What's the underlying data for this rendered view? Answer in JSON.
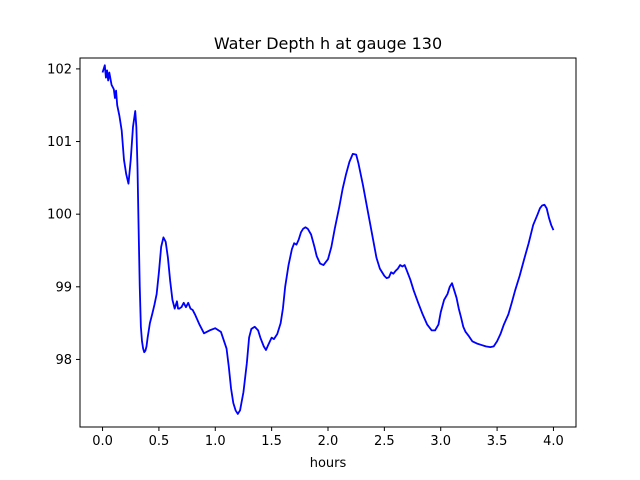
{
  "chart_data": {
    "type": "line",
    "title": "Water Depth h at gauge 130",
    "xlabel": "hours",
    "ylabel": "",
    "xlim": [
      -0.2,
      4.2
    ],
    "ylim": [
      97.07,
      102.15
    ],
    "xticks": [
      0.0,
      0.5,
      1.0,
      1.5,
      2.0,
      2.5,
      3.0,
      3.5,
      4.0
    ],
    "xtick_labels": [
      "0.0",
      "0.5",
      "1.0",
      "1.5",
      "2.0",
      "2.5",
      "3.0",
      "3.5",
      "4.0"
    ],
    "yticks": [
      98,
      99,
      100,
      101,
      102
    ],
    "ytick_labels": [
      "98",
      "99",
      "100",
      "101",
      "102"
    ],
    "grid": false,
    "legend": "none",
    "series": [
      {
        "color": "#0000ff",
        "x": [
          0.0,
          0.02,
          0.03,
          0.04,
          0.05,
          0.06,
          0.08,
          0.1,
          0.11,
          0.12,
          0.13,
          0.15,
          0.17,
          0.19,
          0.21,
          0.23,
          0.25,
          0.27,
          0.29,
          0.3,
          0.31,
          0.32,
          0.33,
          0.34,
          0.35,
          0.36,
          0.37,
          0.38,
          0.39,
          0.4,
          0.42,
          0.44,
          0.46,
          0.48,
          0.5,
          0.52,
          0.54,
          0.56,
          0.58,
          0.6,
          0.62,
          0.64,
          0.65,
          0.66,
          0.67,
          0.68,
          0.7,
          0.72,
          0.74,
          0.76,
          0.78,
          0.8,
          0.82,
          0.84,
          0.86,
          0.88,
          0.9,
          0.95,
          1.0,
          1.05,
          1.1,
          1.12,
          1.14,
          1.16,
          1.18,
          1.2,
          1.22,
          1.25,
          1.28,
          1.3,
          1.32,
          1.35,
          1.38,
          1.4,
          1.43,
          1.45,
          1.47,
          1.5,
          1.52,
          1.55,
          1.58,
          1.6,
          1.62,
          1.65,
          1.68,
          1.7,
          1.72,
          1.74,
          1.76,
          1.78,
          1.8,
          1.82,
          1.85,
          1.88,
          1.9,
          1.93,
          1.96,
          2.0,
          2.03,
          2.06,
          2.1,
          2.13,
          2.16,
          2.19,
          2.22,
          2.25,
          2.27,
          2.29,
          2.31,
          2.34,
          2.37,
          2.4,
          2.43,
          2.46,
          2.5,
          2.52,
          2.54,
          2.56,
          2.58,
          2.6,
          2.62,
          2.64,
          2.66,
          2.68,
          2.7,
          2.73,
          2.76,
          2.8,
          2.84,
          2.88,
          2.92,
          2.95,
          2.98,
          3.0,
          3.03,
          3.06,
          3.08,
          3.1,
          3.12,
          3.14,
          3.16,
          3.18,
          3.2,
          3.22,
          3.25,
          3.28,
          3.32,
          3.36,
          3.4,
          3.44,
          3.47,
          3.5,
          3.53,
          3.56,
          3.6,
          3.63,
          3.66,
          3.7,
          3.74,
          3.78,
          3.82,
          3.86,
          3.88,
          3.9,
          3.92,
          3.94,
          3.96,
          3.98,
          4.0
        ],
        "y": [
          101.95,
          102.05,
          101.88,
          101.98,
          101.84,
          101.95,
          101.78,
          101.72,
          101.6,
          101.7,
          101.5,
          101.35,
          101.15,
          100.75,
          100.55,
          100.42,
          100.75,
          101.2,
          101.42,
          101.2,
          100.65,
          99.8,
          99.0,
          98.45,
          98.25,
          98.15,
          98.1,
          98.12,
          98.18,
          98.3,
          98.5,
          98.62,
          98.75,
          98.9,
          99.2,
          99.55,
          99.68,
          99.62,
          99.4,
          99.08,
          98.82,
          98.7,
          98.75,
          98.8,
          98.7,
          98.7,
          98.72,
          98.78,
          98.72,
          98.78,
          98.7,
          98.68,
          98.62,
          98.55,
          98.48,
          98.42,
          98.36,
          98.4,
          98.43,
          98.38,
          98.15,
          97.9,
          97.6,
          97.4,
          97.3,
          97.25,
          97.3,
          97.55,
          97.95,
          98.3,
          98.42,
          98.45,
          98.4,
          98.3,
          98.18,
          98.13,
          98.2,
          98.3,
          98.28,
          98.35,
          98.5,
          98.7,
          99.0,
          99.3,
          99.52,
          99.6,
          99.58,
          99.65,
          99.75,
          99.8,
          99.82,
          99.8,
          99.72,
          99.55,
          99.42,
          99.32,
          99.3,
          99.38,
          99.55,
          99.8,
          100.1,
          100.35,
          100.55,
          100.72,
          100.83,
          100.82,
          100.7,
          100.55,
          100.4,
          100.15,
          99.9,
          99.65,
          99.4,
          99.25,
          99.15,
          99.12,
          99.13,
          99.2,
          99.18,
          99.22,
          99.25,
          99.3,
          99.28,
          99.3,
          99.22,
          99.1,
          98.95,
          98.78,
          98.62,
          98.48,
          98.4,
          98.4,
          98.48,
          98.65,
          98.82,
          98.9,
          99.0,
          99.05,
          98.95,
          98.85,
          98.7,
          98.58,
          98.45,
          98.38,
          98.32,
          98.25,
          98.22,
          98.2,
          98.18,
          98.17,
          98.18,
          98.25,
          98.35,
          98.48,
          98.62,
          98.78,
          98.95,
          99.15,
          99.38,
          99.6,
          99.85,
          100.0,
          100.08,
          100.12,
          100.13,
          100.08,
          99.95,
          99.85,
          99.78
        ]
      }
    ]
  }
}
